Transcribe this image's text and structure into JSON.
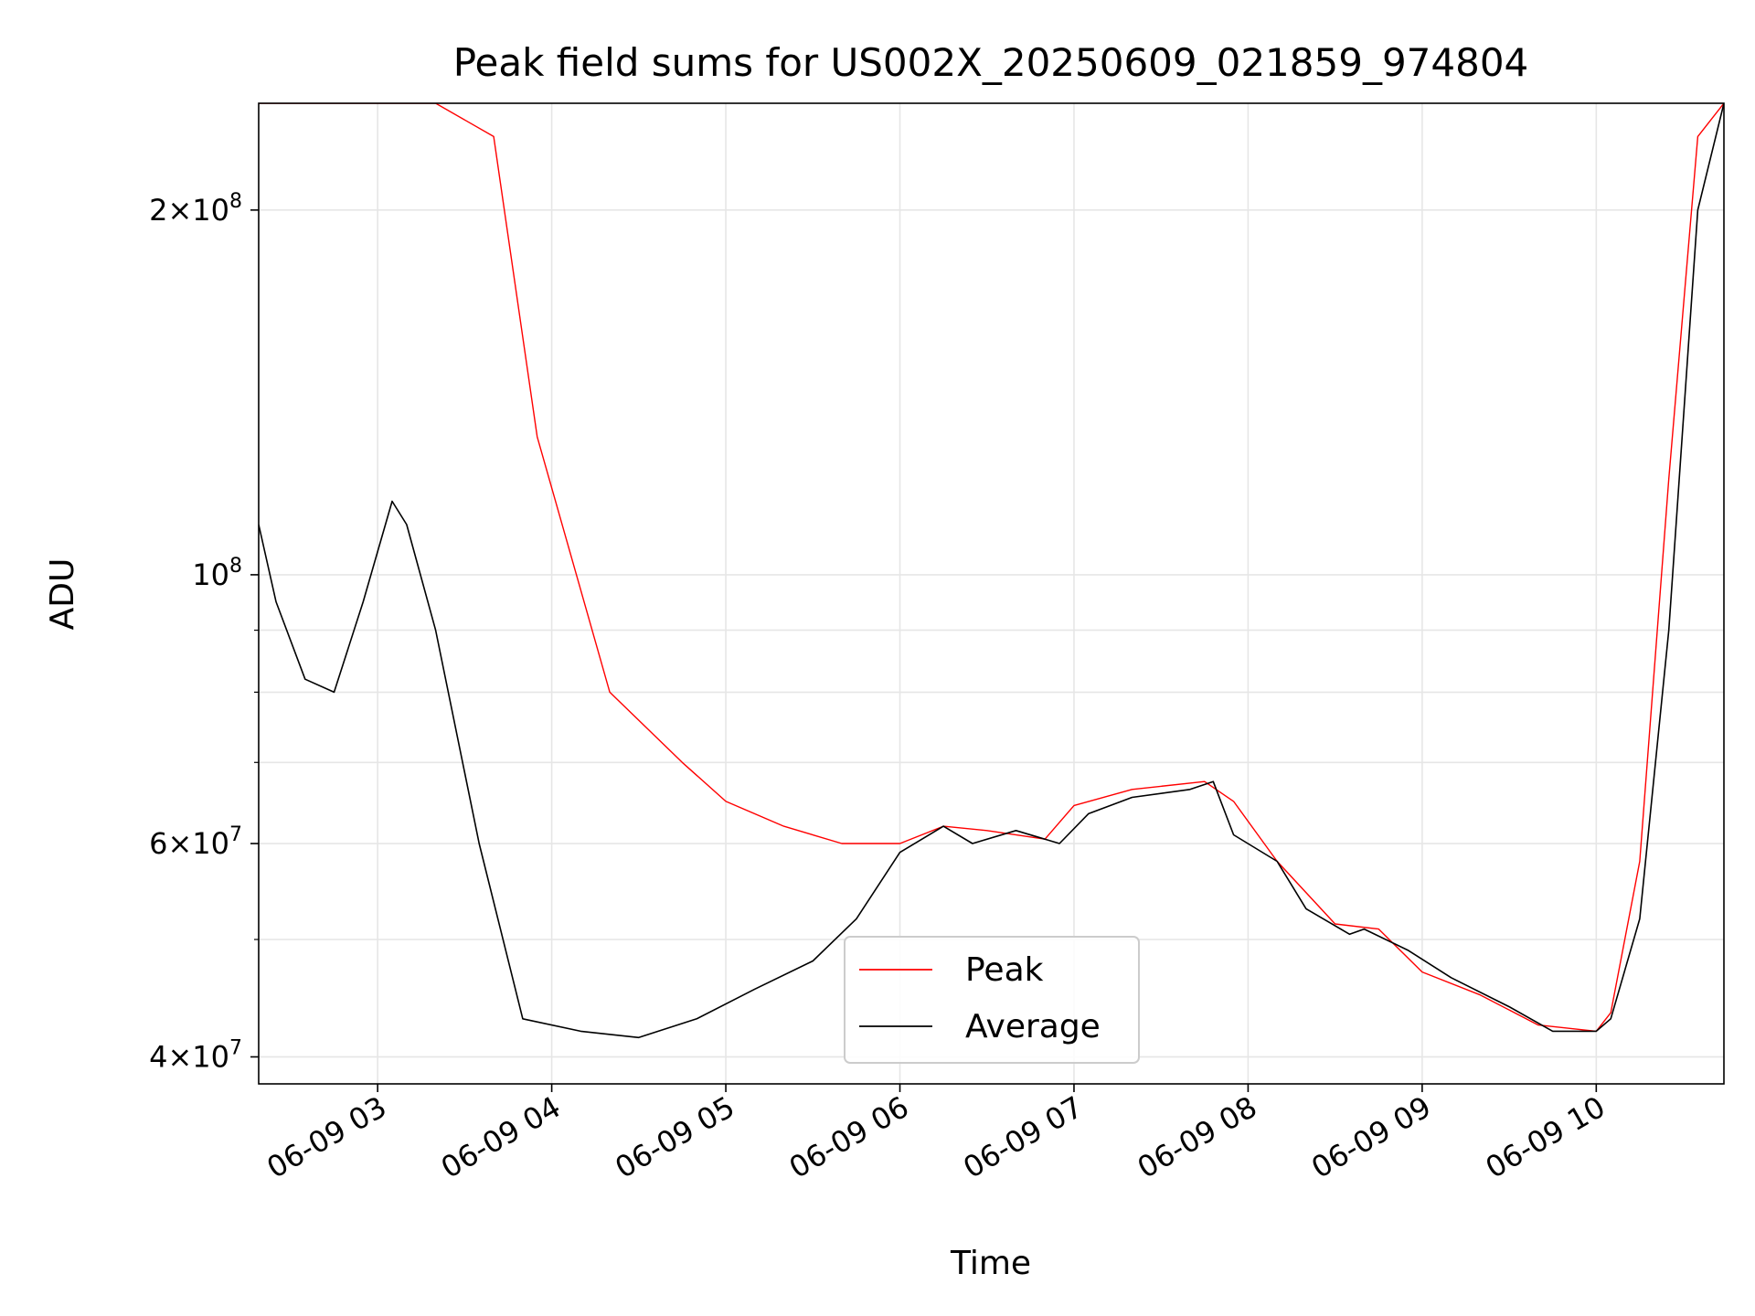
{
  "chart_data": {
    "type": "line",
    "title": "Peak field sums for US002X_20250609_021859_974804",
    "xlabel": "Time",
    "ylabel": "ADU",
    "x_scale": "time",
    "y_scale": "log",
    "xlim": [
      "2025-06-09 02:19",
      "2025-06-09 10:44"
    ],
    "ylim": [
      38000000,
      245000000
    ],
    "x_ticks": [
      {
        "value": "2025-06-09 03:00",
        "label": "06-09 03"
      },
      {
        "value": "2025-06-09 04:00",
        "label": "06-09 04"
      },
      {
        "value": "2025-06-09 05:00",
        "label": "06-09 05"
      },
      {
        "value": "2025-06-09 06:00",
        "label": "06-09 06"
      },
      {
        "value": "2025-06-09 07:00",
        "label": "06-09 07"
      },
      {
        "value": "2025-06-09 08:00",
        "label": "06-09 08"
      },
      {
        "value": "2025-06-09 09:00",
        "label": "06-09 09"
      },
      {
        "value": "2025-06-09 10:00",
        "label": "06-09 10"
      }
    ],
    "y_major_ticks": [
      {
        "value": 40000000,
        "mantissa": "4",
        "exponent": "7"
      },
      {
        "value": 60000000,
        "mantissa": "6",
        "exponent": "7"
      },
      {
        "value": 100000000,
        "mantissa": "",
        "exponent": "8"
      },
      {
        "value": 200000000,
        "mantissa": "2",
        "exponent": "8"
      }
    ],
    "y_minor_gridlines": [
      50000000,
      70000000,
      80000000,
      90000000
    ],
    "grid": true,
    "legend_position": "lower-center",
    "series": [
      {
        "name": "Peak",
        "color": "#ff0000",
        "x": [
          "2025-06-09 02:19",
          "2025-06-09 02:40",
          "2025-06-09 03:00",
          "2025-06-09 03:20",
          "2025-06-09 03:40",
          "2025-06-09 03:55",
          "2025-06-09 04:20",
          "2025-06-09 04:45",
          "2025-06-09 05:00",
          "2025-06-09 05:20",
          "2025-06-09 05:40",
          "2025-06-09 06:00",
          "2025-06-09 06:15",
          "2025-06-09 06:30",
          "2025-06-09 06:50",
          "2025-06-09 07:00",
          "2025-06-09 07:20",
          "2025-06-09 07:45",
          "2025-06-09 07:55",
          "2025-06-09 08:10",
          "2025-06-09 08:30",
          "2025-06-09 08:45",
          "2025-06-09 09:00",
          "2025-06-09 09:20",
          "2025-06-09 09:40",
          "2025-06-09 10:00",
          "2025-06-09 10:05",
          "2025-06-09 10:15",
          "2025-06-09 10:25",
          "2025-06-09 10:35",
          "2025-06-09 10:44"
        ],
        "y": [
          245000000,
          245000000,
          245000000,
          245000000,
          230000000,
          130000000,
          80000000,
          70000000,
          65000000,
          62000000,
          60000000,
          60000000,
          62000000,
          61500000,
          60500000,
          64500000,
          66500000,
          67500000,
          65000000,
          58000000,
          51500000,
          51000000,
          47000000,
          45000000,
          42500000,
          42000000,
          43500000,
          58000000,
          120000000,
          230000000,
          245000000
        ]
      },
      {
        "name": "Average",
        "color": "#000000",
        "x": [
          "2025-06-09 02:19",
          "2025-06-09 02:25",
          "2025-06-09 02:35",
          "2025-06-09 02:45",
          "2025-06-09 02:55",
          "2025-06-09 03:05",
          "2025-06-09 03:10",
          "2025-06-09 03:20",
          "2025-06-09 03:35",
          "2025-06-09 03:50",
          "2025-06-09 04:10",
          "2025-06-09 04:30",
          "2025-06-09 04:50",
          "2025-06-09 05:10",
          "2025-06-09 05:30",
          "2025-06-09 05:45",
          "2025-06-09 06:00",
          "2025-06-09 06:15",
          "2025-06-09 06:25",
          "2025-06-09 06:40",
          "2025-06-09 06:55",
          "2025-06-09 07:05",
          "2025-06-09 07:20",
          "2025-06-09 07:40",
          "2025-06-09 07:48",
          "2025-06-09 07:55",
          "2025-06-09 08:10",
          "2025-06-09 08:20",
          "2025-06-09 08:35",
          "2025-06-09 08:40",
          "2025-06-09 08:55",
          "2025-06-09 09:10",
          "2025-06-09 09:30",
          "2025-06-09 09:45",
          "2025-06-09 10:00",
          "2025-06-09 10:05",
          "2025-06-09 10:15",
          "2025-06-09 10:25",
          "2025-06-09 10:35",
          "2025-06-09 10:44"
        ],
        "y": [
          110000000,
          95000000,
          82000000,
          80000000,
          95000000,
          115000000,
          110000000,
          90000000,
          60000000,
          43000000,
          42000000,
          41500000,
          43000000,
          45500000,
          48000000,
          52000000,
          59000000,
          62000000,
          60000000,
          61500000,
          60000000,
          63500000,
          65500000,
          66500000,
          67500000,
          61000000,
          58000000,
          53000000,
          50500000,
          51000000,
          49000000,
          46500000,
          44000000,
          42000000,
          42000000,
          43000000,
          52000000,
          90000000,
          200000000,
          245000000
        ]
      }
    ]
  }
}
